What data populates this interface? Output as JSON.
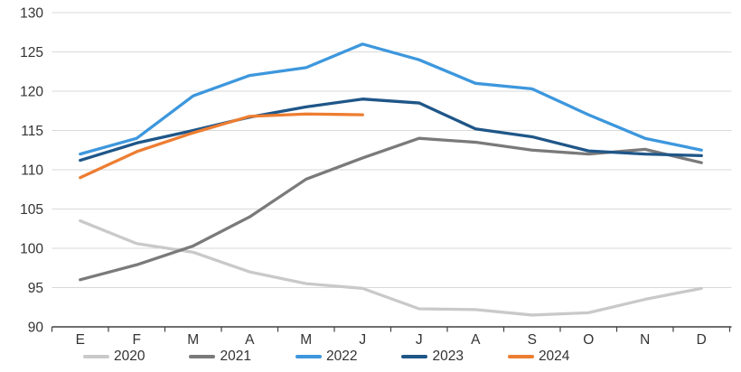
{
  "chart_data": {
    "type": "line",
    "title": "",
    "xlabel": "",
    "ylabel": "",
    "categories": [
      "E",
      "F",
      "M",
      "A",
      "M",
      "J",
      "J",
      "A",
      "S",
      "O",
      "N",
      "D"
    ],
    "y_ticks": [
      "130",
      "125",
      "120",
      "115",
      "110",
      "105",
      "100",
      "95",
      "90"
    ],
    "ylim": [
      90,
      130
    ],
    "grid": true,
    "legend_position": "bottom",
    "colors": {
      "gridline": "#d9d9d9",
      "axis": "#404040",
      "text": "#333333"
    },
    "series": [
      {
        "name": "2020",
        "color": "#c9c9c9",
        "values": [
          103.5,
          100.6,
          99.5,
          97,
          95.5,
          94.9,
          92.3,
          92.2,
          91.5,
          91.8,
          93.5,
          94.9
        ]
      },
      {
        "name": "2021",
        "color": "#7a7a7a",
        "values": [
          96,
          97.9,
          100.3,
          104,
          108.8,
          111.5,
          114,
          113.5,
          112.5,
          112,
          112.6,
          110.9
        ]
      },
      {
        "name": "2022",
        "color": "#3d97dd",
        "values": [
          112,
          114,
          119.4,
          122,
          123,
          126,
          124,
          121,
          120.3,
          117,
          114,
          112.5
        ]
      },
      {
        "name": "2023",
        "color": "#1f5688",
        "values": [
          111.2,
          113.4,
          115,
          116.7,
          118,
          119,
          118.5,
          115.2,
          114.2,
          112.4,
          112,
          111.8
        ]
      },
      {
        "name": "2024",
        "color": "#ed7d31",
        "values": [
          109,
          112.3,
          114.7,
          116.8,
          117.1,
          117
        ]
      }
    ]
  }
}
